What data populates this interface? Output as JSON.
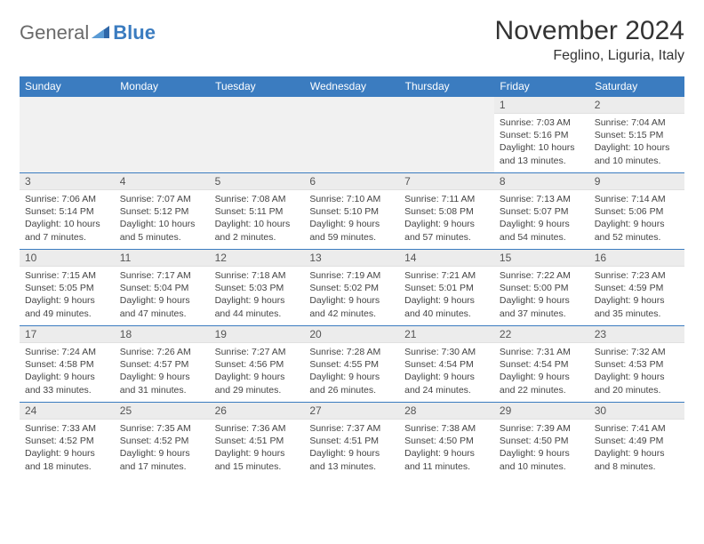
{
  "brand": {
    "general": "General",
    "blue": "Blue"
  },
  "title": "November 2024",
  "location": "Feglino, Liguria, Italy",
  "colors": {
    "header_bg": "#3b7cc0",
    "page_bg": "#ffffff",
    "daynum_bg": "#ececec",
    "empty_bg": "#f1f1f1",
    "text": "#333333"
  },
  "day_headers": [
    "Sunday",
    "Monday",
    "Tuesday",
    "Wednesday",
    "Thursday",
    "Friday",
    "Saturday"
  ],
  "weeks": [
    [
      {
        "empty": true
      },
      {
        "empty": true
      },
      {
        "empty": true
      },
      {
        "empty": true
      },
      {
        "empty": true
      },
      {
        "n": "1",
        "sunrise": "Sunrise: 7:03 AM",
        "sunset": "Sunset: 5:16 PM",
        "d1": "Daylight: 10 hours",
        "d2": "and 13 minutes."
      },
      {
        "n": "2",
        "sunrise": "Sunrise: 7:04 AM",
        "sunset": "Sunset: 5:15 PM",
        "d1": "Daylight: 10 hours",
        "d2": "and 10 minutes."
      }
    ],
    [
      {
        "n": "3",
        "sunrise": "Sunrise: 7:06 AM",
        "sunset": "Sunset: 5:14 PM",
        "d1": "Daylight: 10 hours",
        "d2": "and 7 minutes."
      },
      {
        "n": "4",
        "sunrise": "Sunrise: 7:07 AM",
        "sunset": "Sunset: 5:12 PM",
        "d1": "Daylight: 10 hours",
        "d2": "and 5 minutes."
      },
      {
        "n": "5",
        "sunrise": "Sunrise: 7:08 AM",
        "sunset": "Sunset: 5:11 PM",
        "d1": "Daylight: 10 hours",
        "d2": "and 2 minutes."
      },
      {
        "n": "6",
        "sunrise": "Sunrise: 7:10 AM",
        "sunset": "Sunset: 5:10 PM",
        "d1": "Daylight: 9 hours",
        "d2": "and 59 minutes."
      },
      {
        "n": "7",
        "sunrise": "Sunrise: 7:11 AM",
        "sunset": "Sunset: 5:08 PM",
        "d1": "Daylight: 9 hours",
        "d2": "and 57 minutes."
      },
      {
        "n": "8",
        "sunrise": "Sunrise: 7:13 AM",
        "sunset": "Sunset: 5:07 PM",
        "d1": "Daylight: 9 hours",
        "d2": "and 54 minutes."
      },
      {
        "n": "9",
        "sunrise": "Sunrise: 7:14 AM",
        "sunset": "Sunset: 5:06 PM",
        "d1": "Daylight: 9 hours",
        "d2": "and 52 minutes."
      }
    ],
    [
      {
        "n": "10",
        "sunrise": "Sunrise: 7:15 AM",
        "sunset": "Sunset: 5:05 PM",
        "d1": "Daylight: 9 hours",
        "d2": "and 49 minutes."
      },
      {
        "n": "11",
        "sunrise": "Sunrise: 7:17 AM",
        "sunset": "Sunset: 5:04 PM",
        "d1": "Daylight: 9 hours",
        "d2": "and 47 minutes."
      },
      {
        "n": "12",
        "sunrise": "Sunrise: 7:18 AM",
        "sunset": "Sunset: 5:03 PM",
        "d1": "Daylight: 9 hours",
        "d2": "and 44 minutes."
      },
      {
        "n": "13",
        "sunrise": "Sunrise: 7:19 AM",
        "sunset": "Sunset: 5:02 PM",
        "d1": "Daylight: 9 hours",
        "d2": "and 42 minutes."
      },
      {
        "n": "14",
        "sunrise": "Sunrise: 7:21 AM",
        "sunset": "Sunset: 5:01 PM",
        "d1": "Daylight: 9 hours",
        "d2": "and 40 minutes."
      },
      {
        "n": "15",
        "sunrise": "Sunrise: 7:22 AM",
        "sunset": "Sunset: 5:00 PM",
        "d1": "Daylight: 9 hours",
        "d2": "and 37 minutes."
      },
      {
        "n": "16",
        "sunrise": "Sunrise: 7:23 AM",
        "sunset": "Sunset: 4:59 PM",
        "d1": "Daylight: 9 hours",
        "d2": "and 35 minutes."
      }
    ],
    [
      {
        "n": "17",
        "sunrise": "Sunrise: 7:24 AM",
        "sunset": "Sunset: 4:58 PM",
        "d1": "Daylight: 9 hours",
        "d2": "and 33 minutes."
      },
      {
        "n": "18",
        "sunrise": "Sunrise: 7:26 AM",
        "sunset": "Sunset: 4:57 PM",
        "d1": "Daylight: 9 hours",
        "d2": "and 31 minutes."
      },
      {
        "n": "19",
        "sunrise": "Sunrise: 7:27 AM",
        "sunset": "Sunset: 4:56 PM",
        "d1": "Daylight: 9 hours",
        "d2": "and 29 minutes."
      },
      {
        "n": "20",
        "sunrise": "Sunrise: 7:28 AM",
        "sunset": "Sunset: 4:55 PM",
        "d1": "Daylight: 9 hours",
        "d2": "and 26 minutes."
      },
      {
        "n": "21",
        "sunrise": "Sunrise: 7:30 AM",
        "sunset": "Sunset: 4:54 PM",
        "d1": "Daylight: 9 hours",
        "d2": "and 24 minutes."
      },
      {
        "n": "22",
        "sunrise": "Sunrise: 7:31 AM",
        "sunset": "Sunset: 4:54 PM",
        "d1": "Daylight: 9 hours",
        "d2": "and 22 minutes."
      },
      {
        "n": "23",
        "sunrise": "Sunrise: 7:32 AM",
        "sunset": "Sunset: 4:53 PM",
        "d1": "Daylight: 9 hours",
        "d2": "and 20 minutes."
      }
    ],
    [
      {
        "n": "24",
        "sunrise": "Sunrise: 7:33 AM",
        "sunset": "Sunset: 4:52 PM",
        "d1": "Daylight: 9 hours",
        "d2": "and 18 minutes."
      },
      {
        "n": "25",
        "sunrise": "Sunrise: 7:35 AM",
        "sunset": "Sunset: 4:52 PM",
        "d1": "Daylight: 9 hours",
        "d2": "and 17 minutes."
      },
      {
        "n": "26",
        "sunrise": "Sunrise: 7:36 AM",
        "sunset": "Sunset: 4:51 PM",
        "d1": "Daylight: 9 hours",
        "d2": "and 15 minutes."
      },
      {
        "n": "27",
        "sunrise": "Sunrise: 7:37 AM",
        "sunset": "Sunset: 4:51 PM",
        "d1": "Daylight: 9 hours",
        "d2": "and 13 minutes."
      },
      {
        "n": "28",
        "sunrise": "Sunrise: 7:38 AM",
        "sunset": "Sunset: 4:50 PM",
        "d1": "Daylight: 9 hours",
        "d2": "and 11 minutes."
      },
      {
        "n": "29",
        "sunrise": "Sunrise: 7:39 AM",
        "sunset": "Sunset: 4:50 PM",
        "d1": "Daylight: 9 hours",
        "d2": "and 10 minutes."
      },
      {
        "n": "30",
        "sunrise": "Sunrise: 7:41 AM",
        "sunset": "Sunset: 4:49 PM",
        "d1": "Daylight: 9 hours",
        "d2": "and 8 minutes."
      }
    ]
  ]
}
